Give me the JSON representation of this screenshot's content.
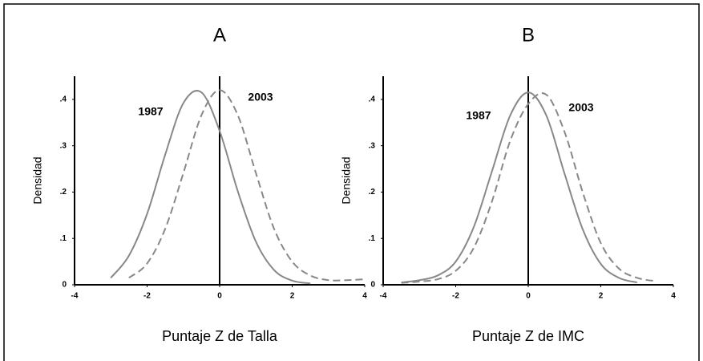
{
  "chart_data": [
    {
      "type": "line",
      "title": "A",
      "xlabel": "Puntaje Z de Talla",
      "ylabel": "Densidad",
      "xlim": [
        -4,
        4
      ],
      "ylim": [
        0,
        0.45
      ],
      "xticks": [
        -4,
        -2,
        0,
        2,
        4
      ],
      "yticks": [
        0,
        {
          "value": 0.1,
          "label": ".1"
        },
        {
          "value": 0.2,
          "label": ".2"
        },
        {
          "value": 0.3,
          "label": ".3"
        },
        {
          "value": 0.4,
          "label": ".4"
        }
      ],
      "vline": 0,
      "series": [
        {
          "name": "1987",
          "color": "#888888",
          "dashed": false,
          "x": [
            -3,
            -2.5,
            -2,
            -1.5,
            -1,
            -0.5,
            0,
            0.5,
            1,
            1.5,
            2,
            2.5
          ],
          "values": [
            0.015,
            0.063,
            0.153,
            0.281,
            0.392,
            0.415,
            0.332,
            0.202,
            0.093,
            0.032,
            0.009,
            0.003
          ]
        },
        {
          "name": "2003",
          "color": "#888888",
          "dashed": true,
          "x": [
            -2.5,
            -2,
            -1.5,
            -1,
            -0.5,
            0,
            0.5,
            1,
            1.5,
            2,
            2.5,
            3,
            3.5,
            4
          ],
          "values": [
            0.015,
            0.046,
            0.121,
            0.241,
            0.366,
            0.42,
            0.366,
            0.241,
            0.121,
            0.05,
            0.02,
            0.01,
            0.01,
            0.012
          ]
        }
      ]
    },
    {
      "type": "line",
      "title": "B",
      "xlabel": "Puntaje Z de IMC",
      "ylabel": "Densidad",
      "xlim": [
        -4,
        4
      ],
      "ylim": [
        0,
        0.45
      ],
      "xticks": [
        -4,
        -2,
        0,
        2,
        4
      ],
      "yticks": [
        0,
        {
          "value": 0.1,
          "label": ".1"
        },
        {
          "value": 0.2,
          "label": ".2"
        },
        {
          "value": 0.3,
          "label": ".3"
        },
        {
          "value": 0.4,
          "label": ".4"
        }
      ],
      "vline": 0,
      "series": [
        {
          "name": "1987",
          "color": "#888888",
          "dashed": false,
          "x": [
            -3.5,
            -3,
            -2.5,
            -2,
            -1.5,
            -1,
            -0.5,
            0,
            0.5,
            1,
            1.5,
            2,
            2.5,
            3
          ],
          "values": [
            0.005,
            0.01,
            0.02,
            0.05,
            0.125,
            0.245,
            0.365,
            0.415,
            0.365,
            0.24,
            0.12,
            0.045,
            0.015,
            0.005
          ]
        },
        {
          "name": "2003",
          "color": "#888888",
          "dashed": true,
          "x": [
            -3.5,
            -3,
            -2.5,
            -2,
            -1.5,
            -1,
            -0.5,
            0,
            0.5,
            1,
            1.5,
            2,
            2.5,
            3,
            3.5
          ],
          "values": [
            0.004,
            0.007,
            0.012,
            0.03,
            0.08,
            0.18,
            0.31,
            0.39,
            0.41,
            0.33,
            0.2,
            0.09,
            0.035,
            0.015,
            0.008
          ]
        }
      ]
    }
  ]
}
